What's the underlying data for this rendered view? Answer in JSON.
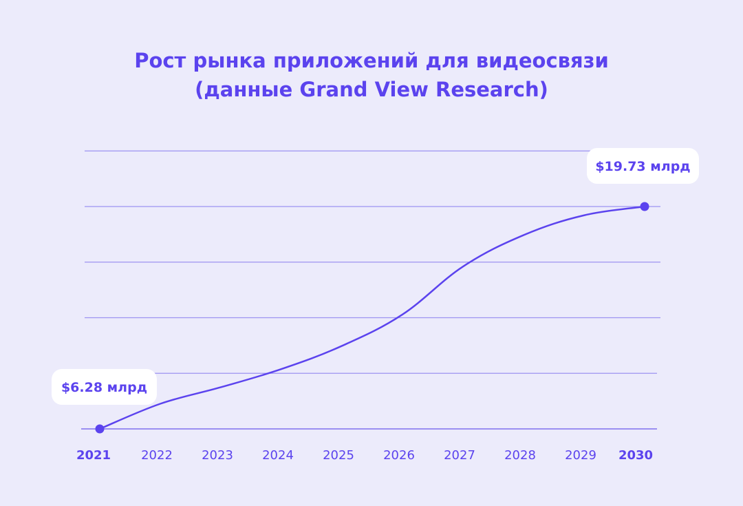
{
  "chart_data": {
    "type": "line",
    "title_lines": [
      "Рост рынка приложений для видеосвязи",
      "(данные Grand View Research)"
    ],
    "x": [
      "2021",
      "2022",
      "2023",
      "2024",
      "2025",
      "2026",
      "2027",
      "2028",
      "2029",
      "2030"
    ],
    "bold_ticks": [
      "2021",
      "2030"
    ],
    "series": [
      {
        "values": [
          6.28,
          7.8,
          8.8,
          9.9,
          11.3,
          13.2,
          16.1,
          18.0,
          19.2,
          19.73
        ]
      }
    ],
    "annotations": [
      {
        "x": "2021",
        "value": 6.28,
        "label": "$6.28 млрд"
      },
      {
        "x": "2030",
        "value": 19.73,
        "label": "$19.73 млрд"
      }
    ],
    "ylim": [
      6.28,
      19.73
    ],
    "grid": true,
    "colors": {
      "line": "#5b43ee",
      "grid": "#9d92f1",
      "background": "#ecebfb",
      "bubble": "#ffffff"
    }
  }
}
